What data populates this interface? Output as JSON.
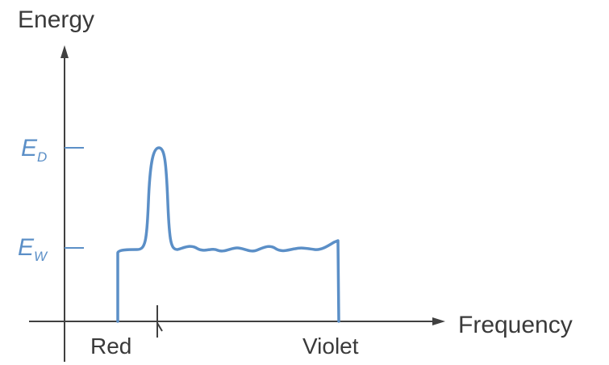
{
  "chart_data": {
    "type": "line",
    "title": "",
    "ylabel": "Energy",
    "xlabel": "Frequency",
    "x_ticks": [
      "Red",
      "Violet"
    ],
    "y_ticks": [
      {
        "symbol": "E",
        "subscript": "D"
      },
      {
        "symbol": "E",
        "subscript": "W"
      }
    ],
    "series_color": "#5b8fc7",
    "axis_color": "#404040",
    "grid": false,
    "legend": "none"
  }
}
